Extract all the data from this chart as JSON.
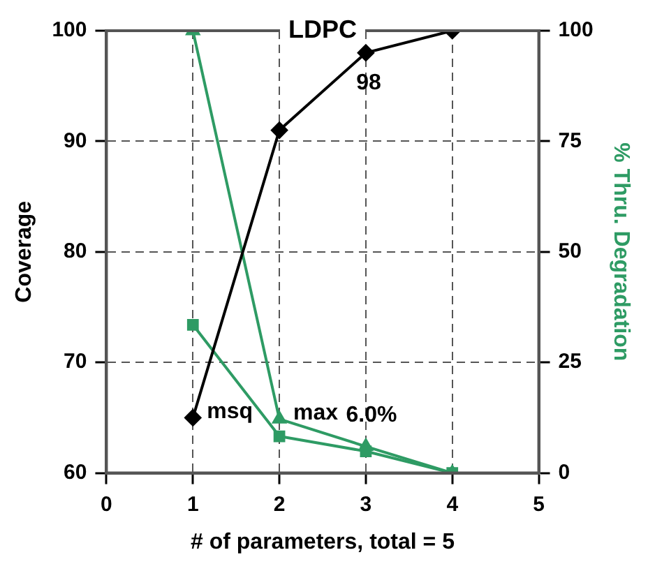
{
  "chart_data": {
    "type": "line",
    "title": "LDPC",
    "xlabel": "# of parameters, total = 5",
    "ylabel": "Coverage",
    "y2label": "% Thru. Degradation",
    "x": [
      1,
      2,
      3,
      4
    ],
    "series": [
      {
        "color": "#000000",
        "values": [
          65,
          91,
          98,
          100
        ],
        "marker": "diamond",
        "value_labels": [
          null,
          null,
          "98",
          null
        ]
      },
      {
        "color": "#2e9b64",
        "values": [
          100,
          12.2,
          6.0,
          0
        ],
        "axis": "y2",
        "marker": "triangle",
        "value_labels": [
          null,
          null,
          "6.0%",
          null
        ]
      },
      {
        "color": "#2e9b64",
        "values": [
          33.5,
          8.3,
          4.9,
          0
        ],
        "axis": "y2",
        "marker": "square"
      }
    ],
    "annotations": [
      {
        "text": "msq",
        "x": 1,
        "y": 65
      },
      {
        "text": "max",
        "x": 2,
        "y": 64.9
      }
    ],
    "xlim": [
      0,
      5
    ],
    "xticks": [
      0,
      1,
      2,
      3,
      4,
      5
    ],
    "ylim": [
      60,
      100
    ],
    "yticks": [
      60,
      70,
      80,
      90,
      100
    ],
    "y2lim": [
      0,
      100
    ],
    "y2ticks": [
      0,
      25,
      50,
      75,
      100
    ],
    "grid": true,
    "line_style": "solid",
    "legend": false
  }
}
